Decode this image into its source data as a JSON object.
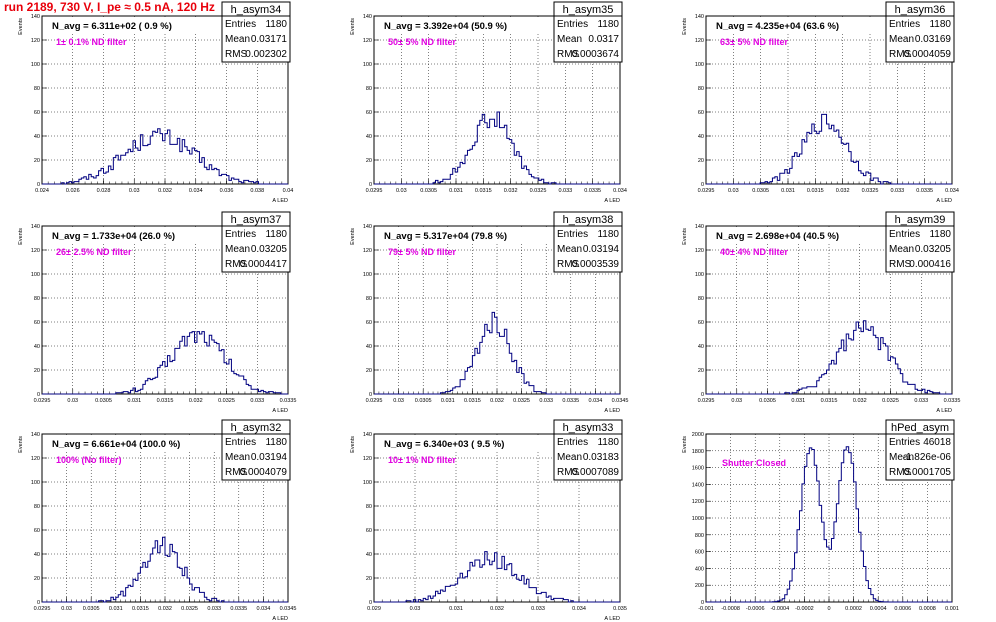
{
  "header": {
    "run_label": "run 2189,   730 V, I_pe ≈ 0.5 nA, 120 Hz"
  },
  "stat_labels": {
    "entries": "Entries",
    "mean": "Mean",
    "rms": "RMS"
  },
  "colors": {
    "histogram": "#000080",
    "title": "#e8000b",
    "filter_text": "#e000e0",
    "grid": "#000000"
  },
  "chart_data": [
    {
      "type": "histogram",
      "hist_name": "h_asym34",
      "navg": "N_avg = 6.311e+02 ( 0.9 %)",
      "filter": "1± 0.1% ND filter",
      "stats": {
        "entries": "1180",
        "mean": "0.03171",
        "rms": "0.002302"
      },
      "ylabel": "Events",
      "xlabel": "A_LED",
      "xlim": [
        0.024,
        0.04
      ],
      "ylim": [
        0,
        140
      ],
      "xticks": [
        "0.024",
        "0.026",
        "0.028",
        "0.03",
        "0.032",
        "0.034",
        "0.036",
        "0.038",
        "0.04"
      ],
      "yticks": [
        "0",
        "20",
        "40",
        "60",
        "80",
        "100",
        "120",
        "140"
      ],
      "grid": true,
      "peaks": [
        {
          "mu": 0.0316,
          "sigma": 0.0023,
          "amp": 40
        }
      ]
    },
    {
      "type": "histogram",
      "hist_name": "h_asym35",
      "navg": "N_avg = 3.392e+04 (50.9 %)",
      "filter": "50± 5% ND filter",
      "stats": {
        "entries": "1180",
        "mean": "0.0317",
        "rms": "0.0003674"
      },
      "ylabel": "Events",
      "xlabel": "A_LED",
      "xlim": [
        0.0295,
        0.034
      ],
      "ylim": [
        0,
        140
      ],
      "xticks": [
        "0.0295",
        "0.03",
        "0.0305",
        "0.031",
        "0.0315",
        "0.032",
        "0.0325",
        "0.033",
        "0.0335",
        "0.034"
      ],
      "yticks": [
        "0",
        "20",
        "40",
        "60",
        "80",
        "100",
        "120",
        "140"
      ],
      "grid": true,
      "peaks": [
        {
          "mu": 0.03165,
          "sigma": 0.00037,
          "amp": 55
        }
      ]
    },
    {
      "type": "histogram",
      "hist_name": "h_asym36",
      "navg": "N_avg = 4.235e+04 (63.6 %)",
      "filter": "63± 5% ND filter",
      "stats": {
        "entries": "1180",
        "mean": "0.03169",
        "rms": "0.0004059"
      },
      "ylabel": "Events",
      "xlabel": "A_LED",
      "xlim": [
        0.0295,
        0.034
      ],
      "ylim": [
        0,
        140
      ],
      "xticks": [
        "0.0295",
        "0.03",
        "0.0305",
        "0.031",
        "0.0315",
        "0.032",
        "0.0325",
        "0.033",
        "0.0335",
        "0.034"
      ],
      "yticks": [
        "0",
        "20",
        "40",
        "60",
        "80",
        "100",
        "120",
        "140"
      ],
      "grid": true,
      "peaks": [
        {
          "mu": 0.03168,
          "sigma": 0.0004,
          "amp": 52
        }
      ]
    },
    {
      "type": "histogram",
      "hist_name": "h_asym37",
      "navg": "N_avg = 1.733e+04 (26.0 %)",
      "filter": "26± 2.5% ND filter",
      "stats": {
        "entries": "1180",
        "mean": "0.03205",
        "rms": "0.0004417"
      },
      "ylabel": "Events",
      "xlabel": "A_LED",
      "xlim": [
        0.0295,
        0.0335
      ],
      "ylim": [
        0,
        140
      ],
      "xticks": [
        "0.0295",
        "0.03",
        "0.0305",
        "0.031",
        "0.0315",
        "0.032",
        "0.0325",
        "0.033",
        "0.0335"
      ],
      "yticks": [
        "0",
        "20",
        "40",
        "60",
        "80",
        "100",
        "120",
        "140"
      ],
      "grid": true,
      "peaks": [
        {
          "mu": 0.03203,
          "sigma": 0.00044,
          "amp": 50
        }
      ]
    },
    {
      "type": "histogram",
      "hist_name": "h_asym38",
      "navg": "N_avg = 5.317e+04 (79.8 %)",
      "filter": "79± 5% ND filter",
      "stats": {
        "entries": "1180",
        "mean": "0.03194",
        "rms": "0.0003539"
      },
      "ylabel": "Events",
      "xlabel": "A_LED",
      "xlim": [
        0.0295,
        0.0345
      ],
      "ylim": [
        0,
        140
      ],
      "xticks": [
        "0.0295",
        "0.03",
        "0.0305",
        "0.031",
        "0.0315",
        "0.032",
        "0.0325",
        "0.033",
        "0.0335",
        "0.034",
        "0.0345"
      ],
      "yticks": [
        "0",
        "20",
        "40",
        "60",
        "80",
        "100",
        "120",
        "140"
      ],
      "grid": true,
      "peaks": [
        {
          "mu": 0.03194,
          "sigma": 0.00035,
          "amp": 60
        }
      ]
    },
    {
      "type": "histogram",
      "hist_name": "h_asym39",
      "navg": "N_avg = 2.698e+04 (40.5 %)",
      "filter": "40± 4% ND filter",
      "stats": {
        "entries": "1180",
        "mean": "0.03205",
        "rms": "0.000416"
      },
      "ylabel": "Events",
      "xlabel": "A_LED",
      "xlim": [
        0.0295,
        0.0335
      ],
      "ylim": [
        0,
        140
      ],
      "xticks": [
        "0.0295",
        "0.03",
        "0.0305",
        "0.031",
        "0.0315",
        "0.032",
        "0.0325",
        "0.033",
        "0.0335"
      ],
      "yticks": [
        "0",
        "20",
        "40",
        "60",
        "80",
        "100",
        "120",
        "140"
      ],
      "grid": true,
      "peaks": [
        {
          "mu": 0.03205,
          "sigma": 0.00041,
          "amp": 54
        }
      ]
    },
    {
      "type": "histogram",
      "hist_name": "h_asym32",
      "navg": "N_avg = 6.661e+04 (100.0 %)",
      "filter": "100% (No filter)",
      "stats": {
        "entries": "1180",
        "mean": "0.03194",
        "rms": "0.0004079"
      },
      "ylabel": "Events",
      "xlabel": "A_LED",
      "xlim": [
        0.0295,
        0.0345
      ],
      "ylim": [
        0,
        140
      ],
      "xticks": [
        "0.0295",
        "0.03",
        "0.0305",
        "0.031",
        "0.0315",
        "0.032",
        "0.0325",
        "0.033",
        "0.0335",
        "0.034",
        "0.0345"
      ],
      "yticks": [
        "0",
        "20",
        "40",
        "60",
        "80",
        "100",
        "120",
        "140"
      ],
      "grid": true,
      "peaks": [
        {
          "mu": 0.03194,
          "sigma": 0.00041,
          "amp": 48
        }
      ]
    },
    {
      "type": "histogram",
      "hist_name": "h_asym33",
      "navg": "N_avg = 6.340e+03 ( 9.5 %)",
      "filter": "10± 1% ND filter",
      "stats": {
        "entries": "1180",
        "mean": "0.03183",
        "rms": "0.0007089"
      },
      "ylabel": "Events",
      "xlabel": "A_LED",
      "xlim": [
        0.029,
        0.035
      ],
      "ylim": [
        0,
        140
      ],
      "xticks": [
        "0.029",
        "0.03",
        "0.031",
        "0.032",
        "0.033",
        "0.034",
        "0.035"
      ],
      "yticks": [
        "0",
        "20",
        "40",
        "60",
        "80",
        "100",
        "120",
        "140"
      ],
      "grid": true,
      "peaks": [
        {
          "mu": 0.03183,
          "sigma": 0.00071,
          "amp": 36
        }
      ]
    },
    {
      "type": "histogram",
      "hist_name": "hPed_asym",
      "navg": "",
      "filter": "Shutter Closed",
      "stats": {
        "entries": "46018",
        "mean": "-1.826e-06",
        "rms": "0.0001705"
      },
      "ylabel": "Events",
      "xlabel": "",
      "xlim": [
        -0.001,
        0.001
      ],
      "ylim": [
        0,
        2000
      ],
      "xticks": [
        "-0.001",
        "-0.0008",
        "-0.0006",
        "-0.0004",
        "-0.0002",
        "0",
        "0.0002",
        "0.0004",
        "0.0006",
        "0.0008",
        "0.001"
      ],
      "yticks": [
        "0",
        "200",
        "400",
        "600",
        "800",
        "1000",
        "1200",
        "1400",
        "1600",
        "1800",
        "2000"
      ],
      "grid": true,
      "peaks": [
        {
          "mu": -0.00015,
          "sigma": 8e-05,
          "amp": 1850
        },
        {
          "mu": 0.00015,
          "sigma": 8e-05,
          "amp": 1850
        }
      ]
    }
  ]
}
